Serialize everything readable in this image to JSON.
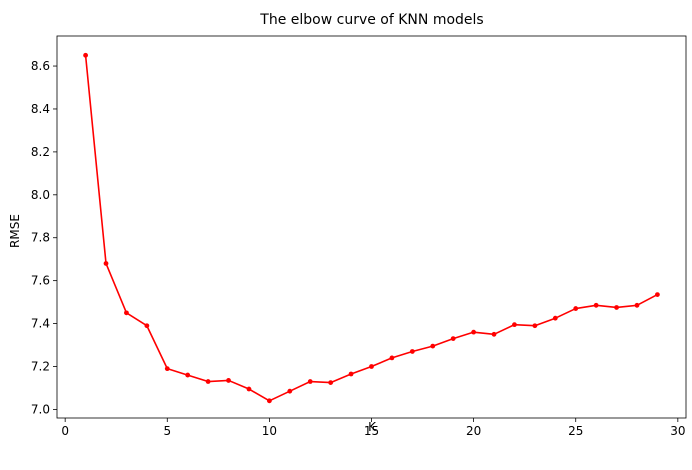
{
  "chart_data": {
    "type": "line",
    "title": "The elbow curve of KNN models",
    "xlabel": "K",
    "ylabel": "RMSE",
    "xlim": [
      -0.4,
      30.4
    ],
    "ylim": [
      6.96,
      8.74
    ],
    "xticks": [
      0,
      5,
      10,
      15,
      20,
      25,
      30
    ],
    "xtick_labels": [
      "0",
      "5",
      "10",
      "15",
      "20",
      "25",
      "30"
    ],
    "yticks": [
      7.0,
      7.2,
      7.4,
      7.6,
      7.8,
      8.0,
      8.2,
      8.4,
      8.6
    ],
    "ytick_labels": [
      "7.0",
      "7.2",
      "7.4",
      "7.6",
      "7.8",
      "8.0",
      "8.2",
      "8.4",
      "8.6"
    ],
    "grid": false,
    "legend": "none",
    "series": [
      {
        "color": "#ff0000",
        "marker": "circle",
        "x": [
          1,
          2,
          3,
          4,
          5,
          6,
          7,
          8,
          9,
          10,
          11,
          12,
          13,
          14,
          15,
          16,
          17,
          18,
          19,
          20,
          21,
          22,
          23,
          24,
          25,
          26,
          27,
          28,
          29
        ],
        "y": [
          8.65,
          7.68,
          7.45,
          7.39,
          7.19,
          7.16,
          7.13,
          7.135,
          7.095,
          7.04,
          7.085,
          7.13,
          7.125,
          7.165,
          7.2,
          7.24,
          7.27,
          7.295,
          7.33,
          7.36,
          7.35,
          7.395,
          7.39,
          7.425,
          7.47,
          7.485,
          7.475,
          7.485,
          7.535
        ]
      }
    ]
  }
}
